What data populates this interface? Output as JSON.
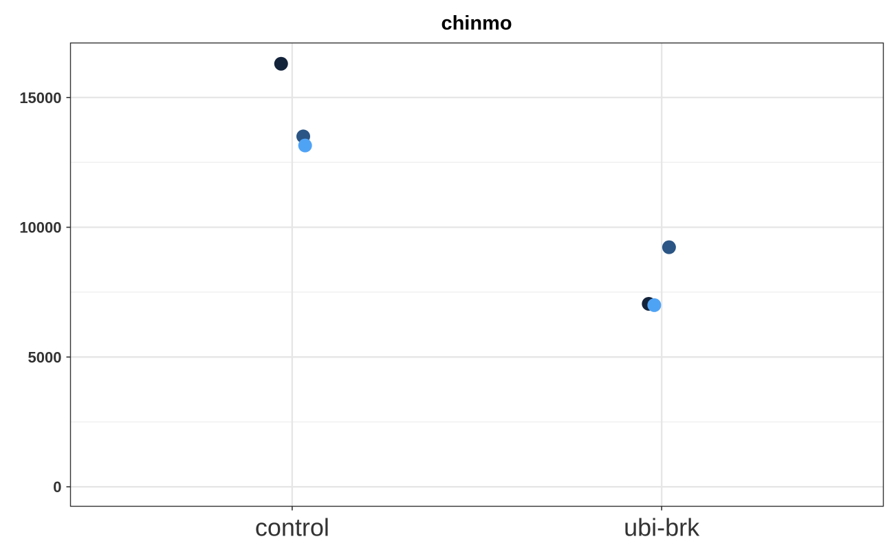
{
  "chart_data": {
    "type": "scatter",
    "title": "chinmo",
    "xlabel": "",
    "ylabel": "",
    "categories": [
      "control",
      "ubi-brk"
    ],
    "ylim": [
      -750,
      17100
    ],
    "yticks": [
      0,
      5000,
      10000,
      15000
    ],
    "ytick_labels": [
      "0",
      "5000",
      "10000",
      "15000"
    ],
    "grid": true,
    "legend": "none",
    "colors": {
      "dark": "#13233a",
      "mid": "#2a5585",
      "light": "#4fa3f5"
    },
    "points": [
      {
        "category": "control",
        "jitter": -0.03,
        "y": 16300,
        "color": "#13233a"
      },
      {
        "category": "control",
        "jitter": 0.03,
        "y": 13500,
        "color": "#2a5585"
      },
      {
        "category": "control",
        "jitter": 0.035,
        "y": 13150,
        "color": "#4fa3f5"
      },
      {
        "category": "ubi-brk",
        "jitter": -0.035,
        "y": 7050,
        "color": "#13233a"
      },
      {
        "category": "ubi-brk",
        "jitter": 0.02,
        "y": 9230,
        "color": "#2a5585"
      },
      {
        "category": "ubi-brk",
        "jitter": -0.02,
        "y": 7000,
        "color": "#4fa3f5"
      }
    ]
  }
}
